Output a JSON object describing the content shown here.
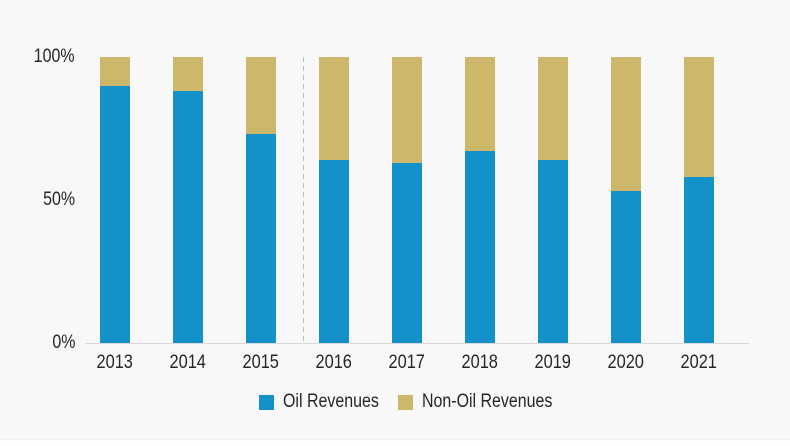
{
  "chart_data": {
    "type": "bar",
    "stacked": true,
    "unit": "%",
    "categories": [
      "2013",
      "2014",
      "2015",
      "2016",
      "2017",
      "2018",
      "2019",
      "2020",
      "2021"
    ],
    "series": [
      {
        "name": "Oil Revenues",
        "color": "#1591C9",
        "values": [
          90,
          88,
          73,
          64,
          63,
          67,
          64,
          53,
          58
        ]
      },
      {
        "name": "Non-Oil Revenues",
        "color": "#CDB76A",
        "values": [
          10,
          12,
          27,
          36,
          37,
          33,
          36,
          47,
          42
        ]
      }
    ],
    "ylim": [
      0,
      100
    ],
    "y_ticks": [
      {
        "label": "100%",
        "value": 100
      },
      {
        "label": "50%",
        "value": 50
      },
      {
        "label": "0%",
        "value": 0
      }
    ],
    "grid": false,
    "legend_position": "bottom",
    "separator_after_index": 2
  },
  "legend": {
    "items": [
      {
        "label": "Oil Revenues",
        "color": "#1591C9"
      },
      {
        "label": "Non-Oil Revenues",
        "color": "#CDB76A"
      }
    ]
  },
  "colors": {
    "background": "#F8F8F8",
    "axis_line": "#D9D9D9",
    "separator_dash": "#B6BEC9",
    "text": "#262626"
  }
}
